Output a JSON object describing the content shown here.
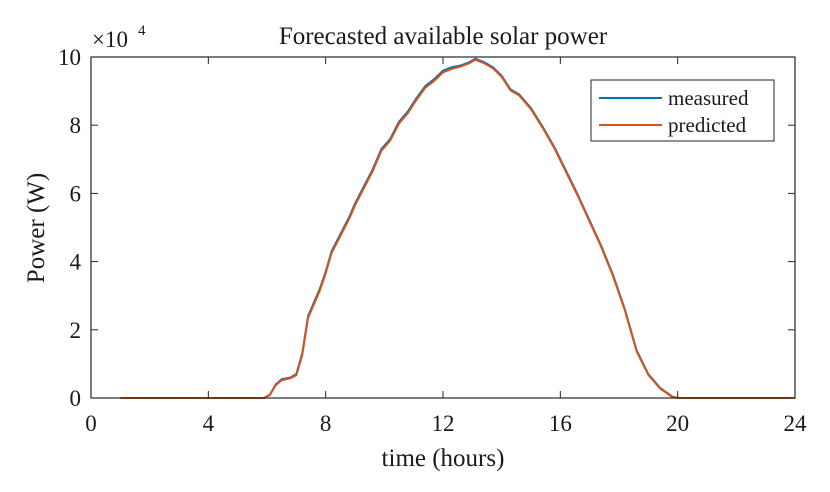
{
  "chart_data": {
    "type": "line",
    "title": "Forecasted available solar power",
    "xlabel": "time (hours)",
    "ylabel": "Power (W)",
    "xlim": [
      0,
      24
    ],
    "ylim": [
      0,
      100000
    ],
    "x_ticks": [
      0,
      4,
      8,
      12,
      16,
      20,
      24
    ],
    "y_ticks": [
      0,
      20000,
      40000,
      60000,
      80000,
      100000
    ],
    "y_tick_labels": [
      "0",
      "2",
      "4",
      "6",
      "8",
      "10"
    ],
    "y_scale_exponent": {
      "base": "×10",
      "exponent": "4"
    },
    "grid": false,
    "legend_position": "top-right",
    "series": [
      {
        "name": "measured",
        "color": "#0072BD",
        "x": [
          1,
          5.9,
          6.1,
          6.3,
          6.5,
          6.8,
          7.0,
          7.2,
          7.4,
          7.6,
          7.8,
          8.0,
          8.2,
          8.5,
          8.8,
          9.0,
          9.3,
          9.6,
          9.9,
          10.2,
          10.5,
          10.8,
          11.1,
          11.4,
          11.7,
          12.0,
          12.3,
          12.6,
          12.9,
          13.1,
          13.4,
          13.7,
          14.0,
          14.3,
          14.6,
          15.0,
          15.4,
          15.8,
          16.2,
          16.6,
          17.0,
          17.4,
          17.8,
          18.2,
          18.6,
          19.0,
          19.4,
          19.8,
          20.0,
          21,
          24
        ],
        "y": [
          0,
          0,
          1000,
          4000,
          5500,
          6000,
          7000,
          13000,
          24000,
          28000,
          32000,
          37000,
          43000,
          48000,
          53000,
          57000,
          62000,
          67000,
          73000,
          76000,
          81000,
          84000,
          88000,
          91500,
          93500,
          96000,
          97000,
          97500,
          98500,
          99500,
          98500,
          97000,
          94500,
          90500,
          89000,
          85000,
          79500,
          73500,
          66500,
          59500,
          52000,
          44500,
          36000,
          26000,
          14000,
          7000,
          3000,
          500,
          0,
          0,
          0
        ]
      },
      {
        "name": "predicted",
        "color": "#D95319",
        "x": [
          1,
          5.9,
          6.1,
          6.3,
          6.5,
          6.8,
          7.0,
          7.2,
          7.4,
          7.6,
          7.8,
          8.0,
          8.2,
          8.5,
          8.8,
          9.0,
          9.3,
          9.6,
          9.9,
          10.2,
          10.5,
          10.8,
          11.1,
          11.4,
          11.7,
          12.0,
          12.3,
          12.6,
          12.9,
          13.1,
          13.4,
          13.7,
          14.0,
          14.3,
          14.6,
          15.0,
          15.4,
          15.8,
          16.2,
          16.6,
          17.0,
          17.4,
          17.8,
          18.2,
          18.6,
          19.0,
          19.4,
          19.8,
          20.0,
          21,
          24
        ],
        "y": [
          0,
          0,
          900,
          3800,
          5200,
          5800,
          6700,
          12500,
          23500,
          27500,
          31500,
          36500,
          42500,
          47500,
          52500,
          56500,
          61500,
          66500,
          72500,
          75500,
          80500,
          83500,
          87500,
          91000,
          93000,
          95500,
          96500,
          97200,
          98200,
          99200,
          98200,
          96700,
          94200,
          90200,
          88700,
          84700,
          79200,
          73200,
          66200,
          59200,
          51700,
          44200,
          35700,
          25700,
          13700,
          6800,
          2800,
          400,
          0,
          0,
          0
        ]
      }
    ]
  }
}
